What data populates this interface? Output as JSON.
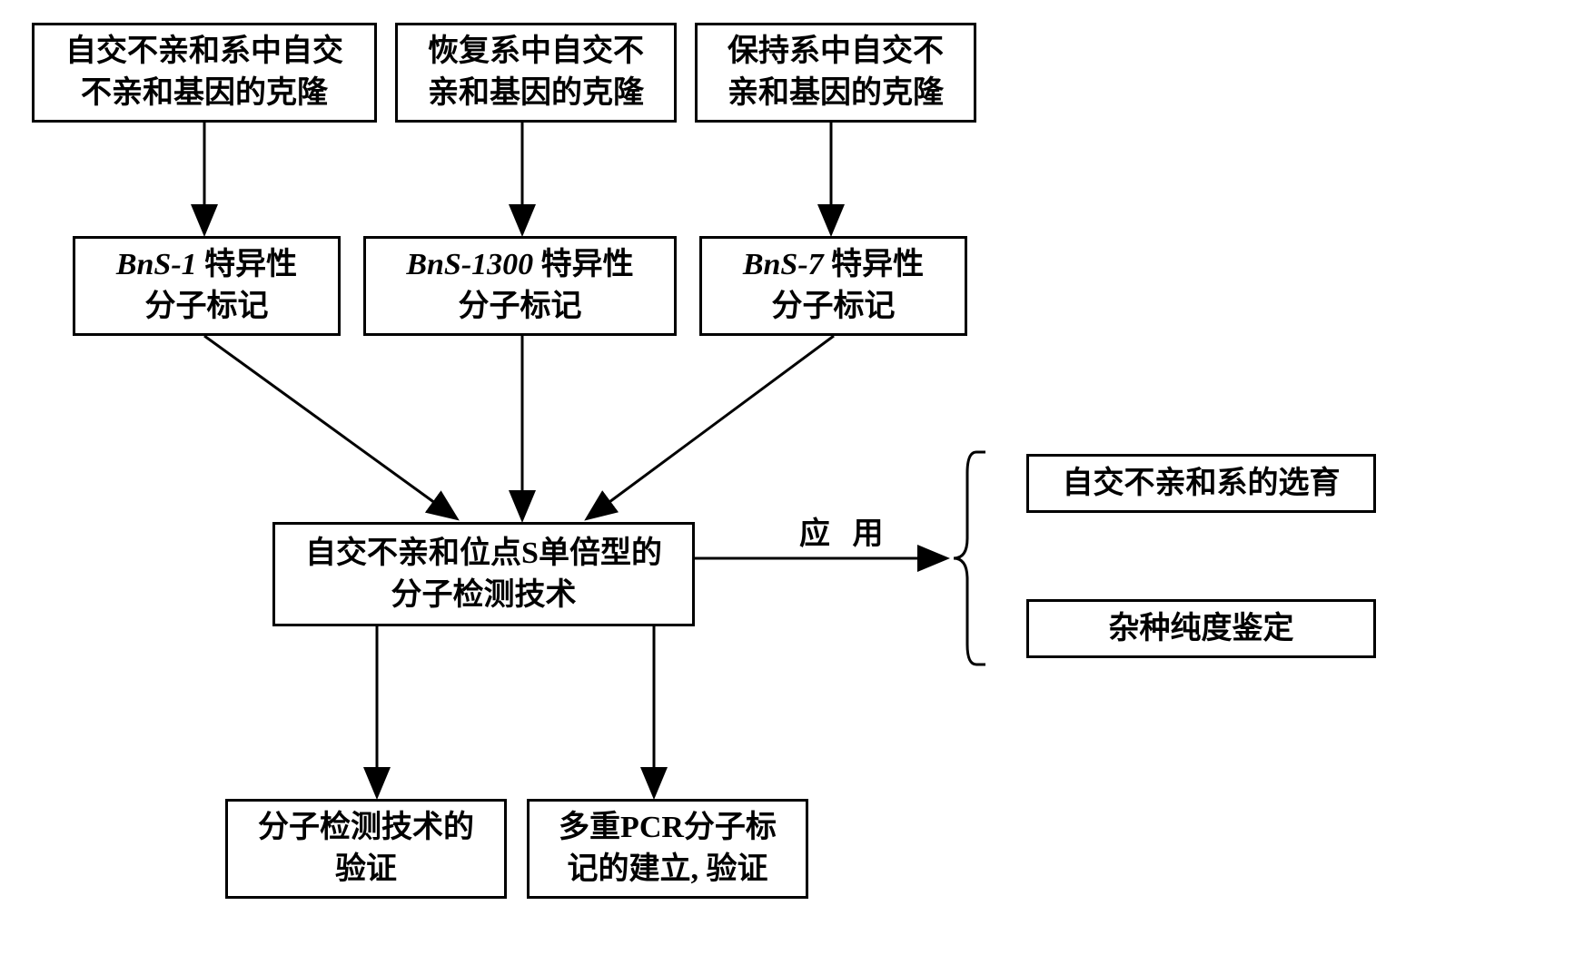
{
  "boxes": {
    "top_left": "自交不亲和系中自交\n不亲和基因的克隆",
    "top_center": "恢复系中自交不\n亲和基因的克隆",
    "top_right": "保持系中自交不\n亲和基因的克隆",
    "mid_left_italic": "BnS-1",
    "mid_left_rest": " 特异性\n分子标记",
    "mid_center_italic": "BnS-1300",
    "mid_center_rest": " 特异性\n分子标记",
    "mid_right_italic": "BnS-7",
    "mid_right_rest": " 特异性\n分子标记",
    "center": "自交不亲和位点S单倍型的\n分子检测技术",
    "bottom_left": "分子检测技术的\n验证",
    "bottom_center": "多重PCR分子标\n记的建立, 验证",
    "side_top": "自交不亲和系的选育",
    "side_bottom": "杂种纯度鉴定",
    "application_label": "应 用"
  },
  "colors": {
    "background": "#ffffff",
    "border": "#000000",
    "arrow": "#000000",
    "text": "#000000"
  },
  "layout": {
    "box_border_width": 3,
    "arrow_stroke_width": 3,
    "font_size": 34
  }
}
